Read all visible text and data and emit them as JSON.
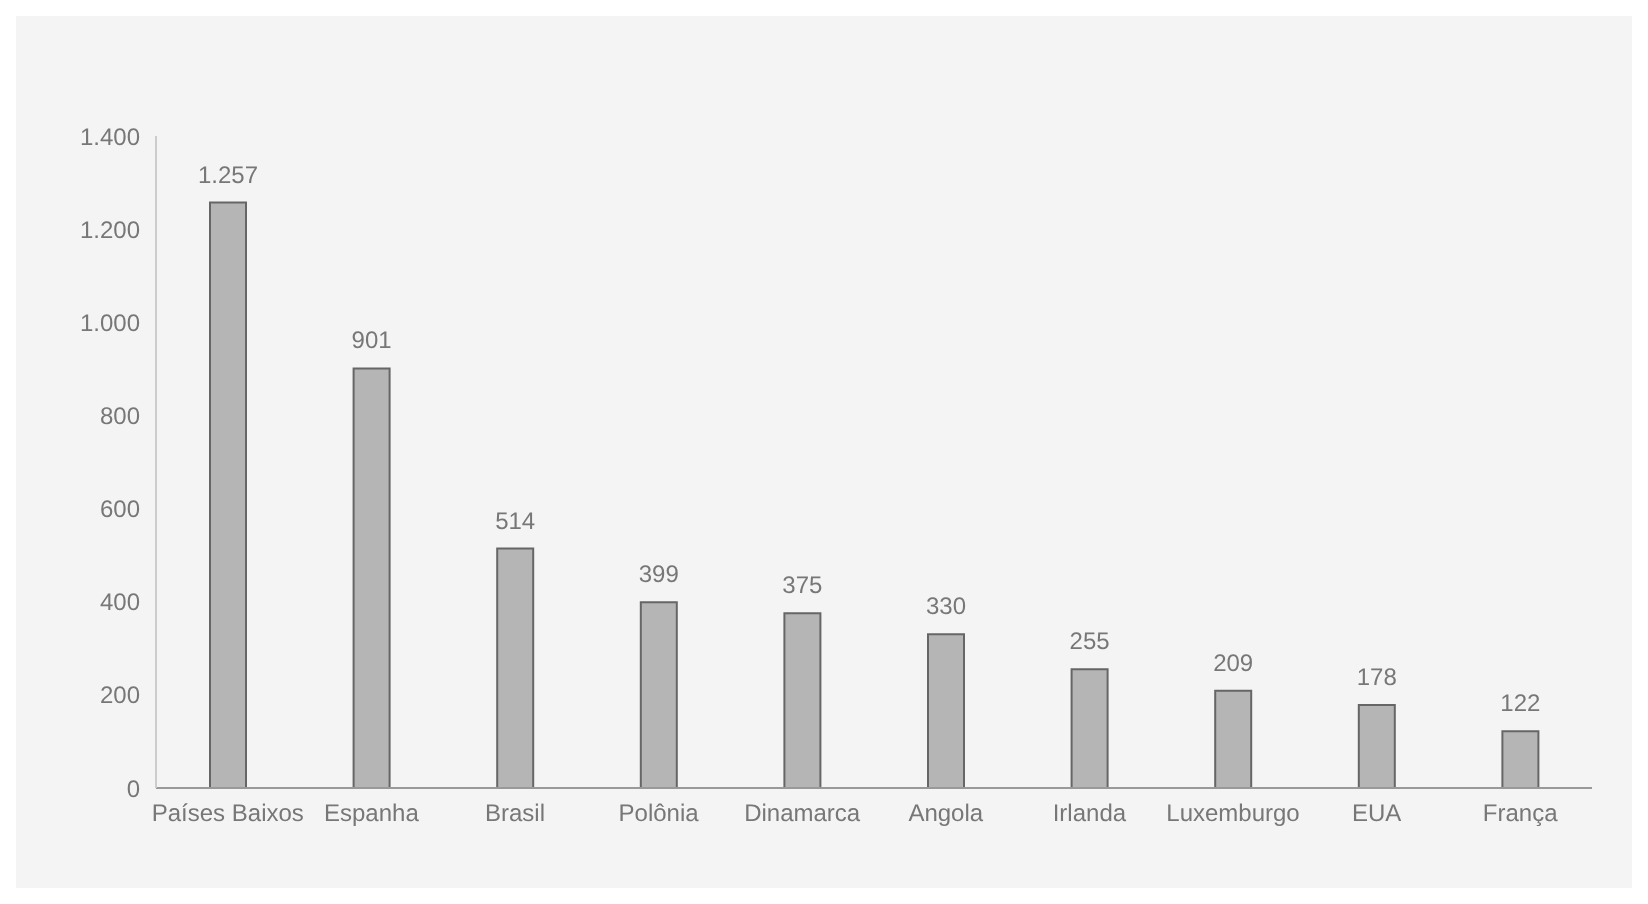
{
  "chart_data": {
    "type": "bar",
    "categories": [
      "Países Baixos",
      "Espanha",
      "Brasil",
      "Polônia",
      "Dinamarca",
      "Angola",
      "Irlanda",
      "Luxemburgo",
      "EUA",
      "França"
    ],
    "values": [
      1257,
      901,
      514,
      399,
      375,
      330,
      255,
      209,
      178,
      122
    ],
    "value_labels": [
      "1.257",
      "901",
      "514",
      "399",
      "375",
      "330",
      "255",
      "209",
      "178",
      "122"
    ],
    "color": "#b5b5b5",
    "ylim": [
      0,
      1400
    ],
    "yticks": [
      0,
      200,
      400,
      600,
      800,
      {
        "value": 1000,
        "label": "1.000"
      },
      {
        "value": 1200,
        "label": "1.200"
      },
      {
        "value": 1400,
        "label": "1.400"
      }
    ],
    "grid": false,
    "legend": false
  }
}
